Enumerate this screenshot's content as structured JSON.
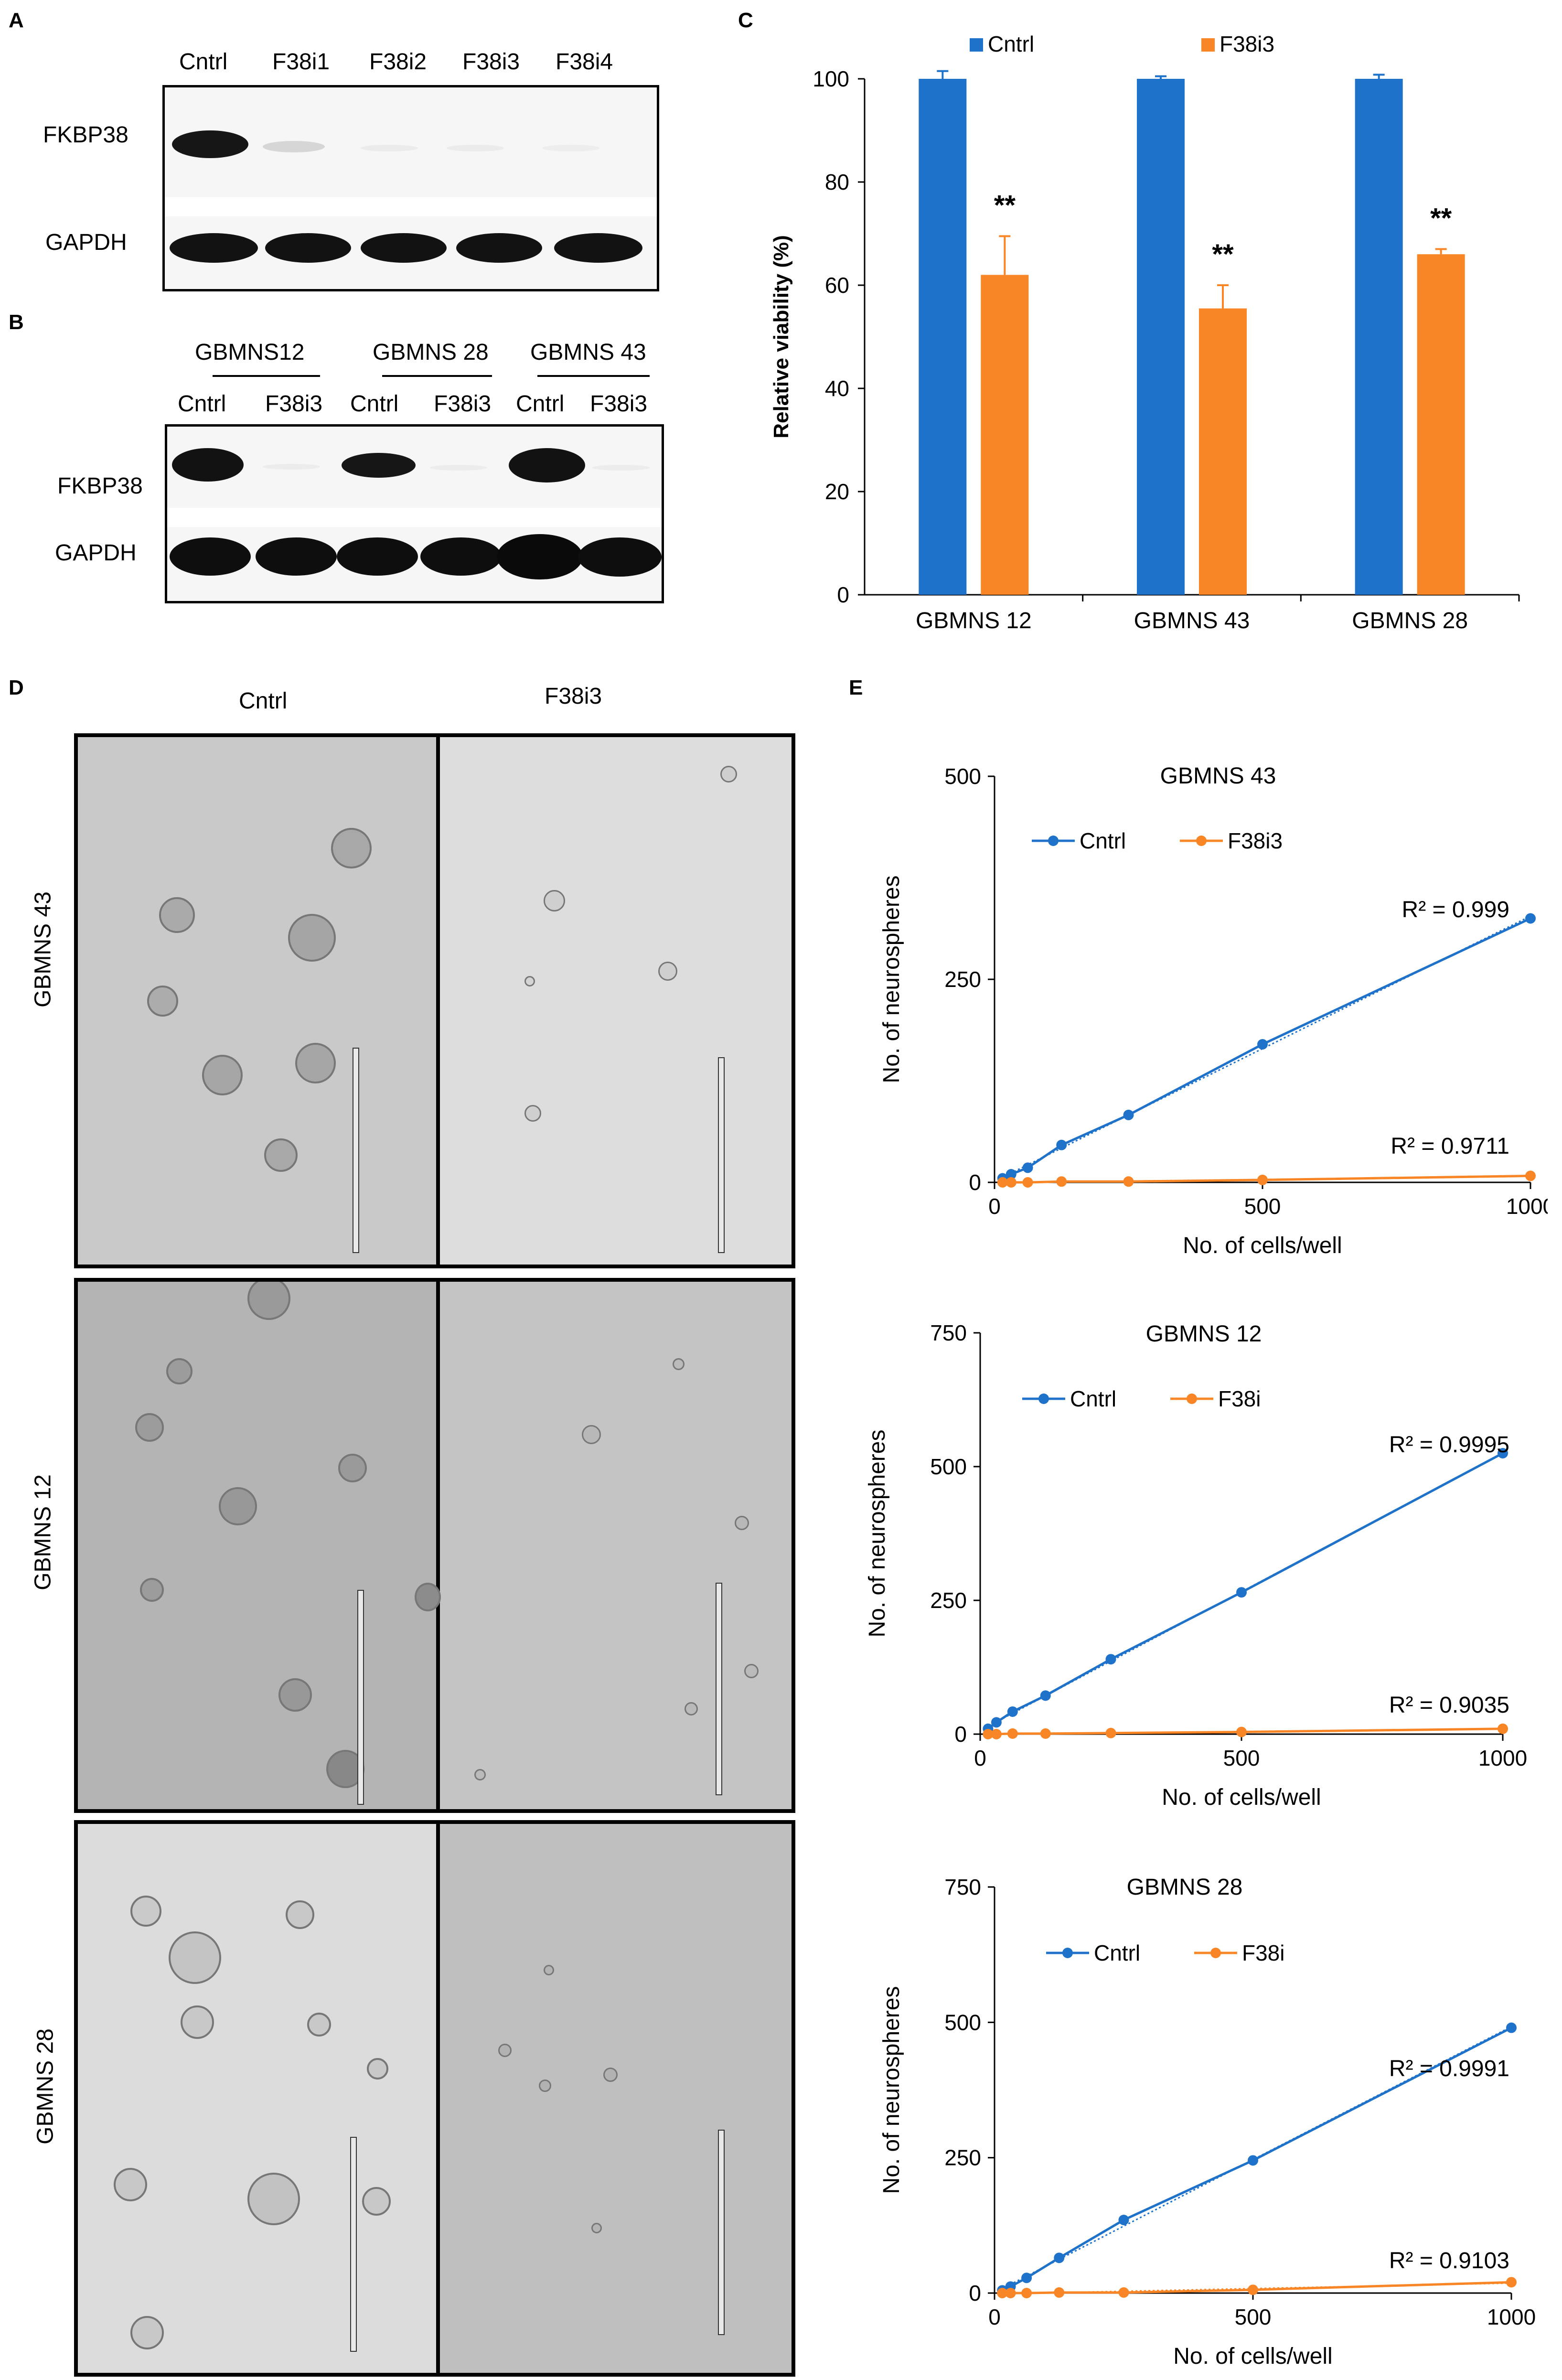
{
  "panels": {
    "A": {
      "letter": "A",
      "lanes": [
        "Cntrl",
        "F38i1",
        "F38i2",
        "F38i3",
        "F38i4"
      ],
      "rows": [
        "FKBP38",
        "GAPDH"
      ]
    },
    "B": {
      "letter": "B",
      "groups": [
        "GBMNS12",
        "GBMNS 28",
        "GBMNS 43"
      ],
      "lanes": [
        "Cntrl",
        "F38i3",
        "Cntrl",
        "F38i3",
        "Cntrl",
        "F38i3"
      ],
      "rows": [
        "FKBP38",
        "GAPDH"
      ]
    },
    "C": {
      "letter": "C"
    },
    "D": {
      "letter": "D",
      "columns": [
        "Cntrl",
        "F38i3"
      ],
      "rows": [
        "GBMNS 43",
        "GBMNS 12",
        "GBMNS 28"
      ]
    },
    "E": {
      "letter": "E"
    }
  },
  "colors": {
    "cntrl": "#1f72c9",
    "treat": "#f98626",
    "axis": "#000000"
  },
  "chart_data": [
    {
      "id": "C",
      "type": "bar",
      "ylabel": "Relative viability (%)",
      "categories": [
        "GBMNS 12",
        "GBMNS 43",
        "GBMNS 28"
      ],
      "ylim": [
        0,
        100
      ],
      "yticks": [
        "0",
        "20",
        "40",
        "60",
        "80",
        "100"
      ],
      "legend_position": "top",
      "significance": [
        "**",
        "**",
        "**"
      ],
      "series": [
        {
          "name": "Cntrl",
          "values": [
            100,
            100,
            100
          ],
          "errors": [
            1.5,
            0.5,
            0.8
          ]
        },
        {
          "name": "F38i3",
          "values": [
            62,
            55.5,
            66
          ],
          "errors": [
            7.5,
            4.5,
            1.0
          ]
        }
      ]
    },
    {
      "id": "E1",
      "type": "line",
      "title": "GBMNS 43",
      "xlabel": "No. of cells/well",
      "ylabel": "No. of neurospheres",
      "xlim": [
        0,
        1000
      ],
      "ylim": [
        0,
        500
      ],
      "xticks": [
        "0",
        "500",
        "1000"
      ],
      "yticks": [
        "0",
        "250",
        "500"
      ],
      "x": [
        15,
        31,
        62,
        125,
        250,
        500,
        1000
      ],
      "series": [
        {
          "name": "Cntrl",
          "values": [
            5,
            10,
            18,
            46,
            83,
            170,
            325
          ],
          "r2": "R² = 0.999"
        },
        {
          "name": "F38i3",
          "values": [
            0,
            0,
            0,
            1,
            1,
            3,
            8
          ],
          "r2": "R² = 0.9711"
        }
      ]
    },
    {
      "id": "E2",
      "type": "line",
      "title": "GBMNS 12",
      "xlabel": "No. of cells/well",
      "ylabel": "No. of neurospheres",
      "xlim": [
        0,
        1000
      ],
      "ylim": [
        0,
        750
      ],
      "xticks": [
        "0",
        "500",
        "1000"
      ],
      "yticks": [
        "0",
        "250",
        "500",
        "750"
      ],
      "x": [
        15,
        31,
        62,
        125,
        250,
        500,
        1000
      ],
      "series": [
        {
          "name": "Cntrl",
          "values": [
            10,
            22,
            42,
            72,
            140,
            265,
            525
          ],
          "r2": "R² = 0.9995"
        },
        {
          "name": "F38i",
          "values": [
            0,
            0,
            1,
            1,
            2,
            4,
            10
          ],
          "r2": "R² = 0.9035"
        }
      ]
    },
    {
      "id": "E3",
      "type": "line",
      "title": "GBMNS 28",
      "xlabel": "No. of cells/well",
      "ylabel": "No. of neurospheres",
      "xlim": [
        0,
        1000
      ],
      "ylim": [
        0,
        750
      ],
      "xticks": [
        "0",
        "500",
        "1000"
      ],
      "yticks": [
        "0",
        "250",
        "500",
        "750"
      ],
      "x": [
        15,
        31,
        62,
        125,
        250,
        500,
        1000
      ],
      "series": [
        {
          "name": "Cntrl",
          "values": [
            5,
            12,
            28,
            65,
            135,
            245,
            490
          ],
          "r2": "R² = 0.9991"
        },
        {
          "name": "F38i",
          "values": [
            0,
            0,
            0,
            1,
            1,
            6,
            20
          ],
          "r2": "R² = 0.9103"
        }
      ]
    }
  ]
}
